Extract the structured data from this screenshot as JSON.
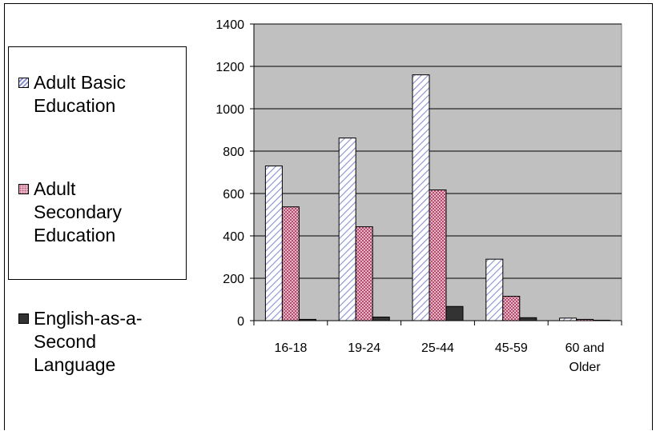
{
  "chart_data": {
    "type": "bar",
    "categories": [
      "16-18",
      "19-24",
      "25-44",
      "45-59",
      "60 and Older"
    ],
    "series": [
      {
        "name": "Adult Basic Education",
        "values": [
          730,
          862,
          1160,
          290,
          12
        ],
        "color": "#d6d9f3",
        "stroke": "#8a90d0",
        "pattern": "hatch"
      },
      {
        "name": "Adult Secondary Education",
        "values": [
          537,
          443,
          617,
          115,
          6
        ],
        "color": "#d98aa8",
        "stroke": "#a3416a",
        "pattern": "dots"
      },
      {
        "name": "English-as-a-Second Language",
        "values": [
          6,
          17,
          67,
          14,
          2
        ],
        "color": "#333333",
        "stroke": "#000000",
        "pattern": "solid"
      }
    ],
    "ylim": [
      0,
      1400
    ],
    "yticks": [
      0,
      200,
      400,
      600,
      800,
      1000,
      1200,
      1400
    ],
    "grid": true,
    "legend_position": "left",
    "plot_background": "#c0c0c0"
  },
  "legend": {
    "items": [
      {
        "label": "Adult Basic\nEducation"
      },
      {
        "label": "Adult\nSecondary\nEducation"
      },
      {
        "label": "English-as-a-\nSecond\nLanguage"
      }
    ]
  },
  "xtick_display": [
    "16-18",
    "19-24",
    "25-44",
    "45-59",
    "60 and\nOlder"
  ]
}
